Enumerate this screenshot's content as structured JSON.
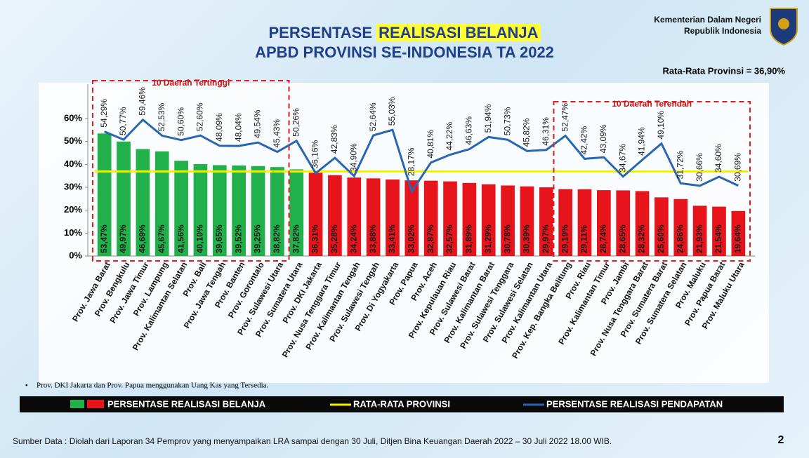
{
  "header": {
    "title_part1": "PERSENTASE",
    "title_highlight": "REALISASI BELANJA",
    "title_line2": "APBD PROVINSI SE-INDONESIA TA 2022",
    "ministry": [
      "Kementerian Dalam Negeri",
      "Republik Indonesia"
    ]
  },
  "chart_data": {
    "type": "bar",
    "categories": [
      "Prov. Jawa Barat",
      "Prov. Bengkulu",
      "Prov. Jawa Timur",
      "Prov. Lampung",
      "Prov. Kalimantan Selatan",
      "Prov. Bali",
      "Prov. Jawa Tengah",
      "Prov. Banten",
      "Prov. Gorontalo",
      "Prov. Sulawesi Utara",
      "Prov. Sumatera Utara",
      "Prov. DKI Jakarta",
      "Prov. Nusa Tenggara Timur",
      "Prov. Kalimantan Tengah",
      "Prov. Sulawesi Tengah",
      "Prov. Di Yogyakarta",
      "Prov. Papua",
      "Prov. Aceh",
      "Prov. Kepulauan Riau",
      "Prov. Sulawesi Barat",
      "Prov. Kalimantan Barat",
      "Prov. Sulawesi Tenggara",
      "Prov. Sulawesi Selatan",
      "Prov. Kalimantan Utara",
      "Prov. Kep. Bangka Belitung",
      "Prov. Riau",
      "Prov. Kalimantan Timur",
      "Prov. Jambi",
      "Prov. Nusa Tenggara Barat",
      "Prov. Sumatera Barat",
      "Prov. Sumatera Selatan",
      "Prov. Maluku",
      "Prov. Papua Barat",
      "Prov. Maluku Utara"
    ],
    "series": [
      {
        "name": "PERSENTASE REALISASI BELANJA",
        "colors": [
          "#22b04a",
          "#e8141c"
        ],
        "values": [
          53.47,
          49.97,
          46.69,
          45.67,
          41.56,
          40.1,
          39.65,
          39.52,
          39.25,
          38.82,
          37.82,
          36.31,
          35.28,
          34.24,
          33.88,
          33.41,
          33.02,
          32.87,
          32.57,
          31.89,
          31.29,
          30.78,
          30.39,
          29.97,
          29.19,
          29.11,
          28.74,
          28.65,
          28.32,
          25.6,
          24.86,
          21.93,
          21.54,
          19.64
        ],
        "value_labels": [
          "53,47%",
          "49,97%",
          "46,69%",
          "45,67%",
          "41,56%",
          "40,10%",
          "39,65%",
          "39,52%",
          "39,25%",
          "38,82%",
          "37,82%",
          "36,31%",
          "35,28%",
          "34,24%",
          "33,88%",
          "33,41%",
          "33,02%",
          "32,87%",
          "32,57%",
          "31,89%",
          "31,29%",
          "30,78%",
          "30,39%",
          "29,97%",
          "29,19%",
          "29,11%",
          "28,74%",
          "28,65%",
          "28,32%",
          "25,60%",
          "24,86%",
          "21,93%",
          "21,54%",
          "19,64%"
        ]
      },
      {
        "name": "PERSENTASE REALISASI PENDAPATAN",
        "type": "line",
        "color": "#2a66b0",
        "values": [
          54.29,
          50.77,
          59.46,
          52.53,
          50.6,
          52.6,
          48.09,
          48.04,
          49.54,
          45.43,
          50.26,
          36.16,
          42.83,
          34.9,
          52.64,
          55.03,
          28.17,
          40.81,
          44.22,
          46.63,
          51.94,
          50.73,
          45.82,
          46.31,
          52.47,
          42.42,
          43.09,
          34.67,
          41.94,
          49.1,
          31.72,
          30.66,
          34.6,
          30.69
        ],
        "value_labels": [
          "54,29%",
          "50,77%",
          "59,46%",
          "52,53%",
          "50,60%",
          "52,60%",
          "48,09%",
          "48,04%",
          "49,54%",
          "45,43%",
          "50,26%",
          "36,16%",
          "42,83%",
          "34,90%",
          "52,64%",
          "55,03%",
          "28,17%",
          "40,81%",
          "44,22%",
          "46,63%",
          "51,94%",
          "50,73%",
          "45,82%",
          "46,31%",
          "52,47%",
          "42,42%",
          "43,09%",
          "34,67%",
          "41,94%",
          "49,10%",
          "31,72%",
          "30,66%",
          "34,60%",
          "30,69%"
        ]
      }
    ],
    "average": {
      "name": "RATA-RATA PROVINSI",
      "color": "#f5f200",
      "value": 36.9,
      "label": "Rata-Rata Provinsi = 36,90%"
    },
    "ylim": [
      0,
      75
    ],
    "yticks": [
      {
        "value": 0,
        "label": "0%"
      },
      {
        "value": 10,
        "label": "10%"
      },
      {
        "value": 20,
        "label": "20%"
      },
      {
        "value": 30,
        "label": "30%"
      },
      {
        "value": 40,
        "label": "40%"
      },
      {
        "value": 50,
        "label": "50%"
      },
      {
        "value": 60,
        "label": "60%"
      }
    ],
    "highlights": [
      {
        "label": "10 Daerah Tertinggi",
        "side": "first",
        "count": 10
      },
      {
        "label": "10 Daerah Terendah",
        "side": "last",
        "count": 10
      }
    ],
    "note": "Prov. DKI Jakarta dan Prov. Papua menggunakan Uang Kas yang Tersedia."
  },
  "footer": {
    "source": "Sumber Data : Diolah dari Laporan 34 Pemprov yang menyampaikan LRA sampai dengan 30 Juli, Ditjen Bina Keuangan Daerah 2022 – 30 Juli 2022  18.00 WIB.",
    "page_number": "2"
  }
}
